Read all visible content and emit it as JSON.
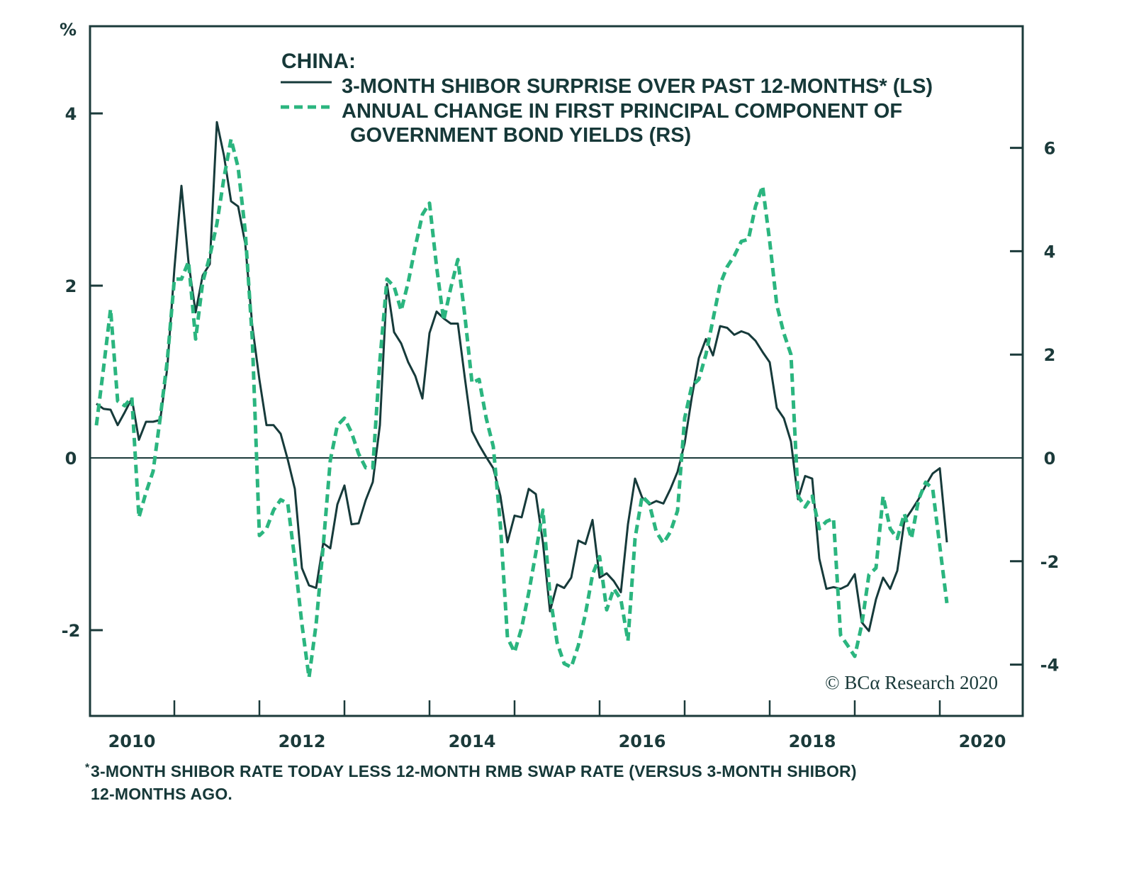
{
  "chart_data": {
    "type": "line",
    "title": "CHINA:",
    "left_axis_unit": "%",
    "x_tick_labels": [
      "2010",
      "2012",
      "2014",
      "2016",
      "2018",
      "2020"
    ],
    "x_range": [
      "2010-01",
      "2020-12"
    ],
    "y_left": {
      "label": "%",
      "ticks": [
        -2,
        0,
        2,
        4
      ],
      "range": [
        -2.9,
        5.0
      ]
    },
    "y_right": {
      "ticks": [
        -4,
        -2,
        0,
        2,
        4,
        6
      ],
      "range": [
        -4.9,
        7.9
      ]
    },
    "grid": false,
    "zero_line": true,
    "legend_position": "top-center",
    "series": [
      {
        "name": "3-MONTH SHIBOR SURPRISE OVER PAST 12-MONTHS* (LS)",
        "axis": "left",
        "style": "solid",
        "color": "#163a3a",
        "start": "2010-01",
        "frequency": "monthly",
        "values": [
          0.63,
          0.57,
          0.56,
          0.38,
          0.53,
          0.69,
          0.21,
          0.42,
          0.42,
          0.44,
          1.04,
          2.19,
          3.16,
          2.27,
          1.69,
          2.12,
          2.25,
          3.9,
          3.51,
          2.98,
          2.92,
          2.49,
          1.53,
          0.91,
          0.38,
          0.38,
          0.28,
          -0.02,
          -0.36,
          -1.28,
          -1.48,
          -1.51,
          -0.99,
          -1.05,
          -0.54,
          -0.32,
          -0.77,
          -0.76,
          -0.49,
          -0.28,
          0.38,
          2.02,
          1.46,
          1.33,
          1.11,
          0.95,
          0.69,
          1.45,
          1.7,
          1.62,
          1.56,
          1.56,
          0.92,
          0.31,
          0.15,
          0.01,
          -0.12,
          -0.44,
          -0.98,
          -0.67,
          -0.69,
          -0.36,
          -0.42,
          -0.98,
          -1.78,
          -1.47,
          -1.51,
          -1.39,
          -0.96,
          -1.0,
          -0.72,
          -1.39,
          -1.34,
          -1.43,
          -1.56,
          -0.77,
          -0.24,
          -0.46,
          -0.54,
          -0.5,
          -0.53,
          -0.36,
          -0.16,
          0.17,
          0.7,
          1.16,
          1.38,
          1.19,
          1.53,
          1.51,
          1.43,
          1.47,
          1.44,
          1.36,
          1.23,
          1.11,
          0.58,
          0.46,
          0.19,
          -0.48,
          -0.21,
          -0.24,
          -1.17,
          -1.52,
          -1.5,
          -1.52,
          -1.48,
          -1.35,
          -1.91,
          -2.01,
          -1.64,
          -1.39,
          -1.52,
          -1.31,
          -0.73,
          -0.61,
          -0.48,
          -0.32,
          -0.18,
          -0.12,
          -0.98
        ]
      },
      {
        "name": "ANNUAL CHANGE IN FIRST PRINCIPAL COMPONENT OF GOVERNMENT BOND YIELDS (RS)",
        "axis": "right",
        "style": "dashed",
        "color": "#2bb57f",
        "start": "2010-01",
        "frequency": "monthly",
        "values": [
          0.63,
          1.73,
          2.88,
          1.1,
          1.01,
          1.17,
          -1.15,
          -0.67,
          -0.26,
          0.77,
          1.88,
          3.46,
          3.46,
          3.8,
          2.3,
          3.4,
          3.9,
          4.53,
          5.42,
          6.17,
          5.62,
          4.39,
          2.3,
          -1.5,
          -1.37,
          -1.01,
          -0.81,
          -0.88,
          -1.98,
          -3.22,
          -4.25,
          -3.22,
          -1.71,
          -0.05,
          0.63,
          0.77,
          0.49,
          0.08,
          -0.19,
          -0.19,
          1.88,
          3.46,
          3.32,
          2.85,
          3.4,
          4.09,
          4.71,
          4.93,
          3.7,
          2.66,
          3.29,
          3.84,
          2.74,
          1.45,
          1.52,
          0.77,
          0.22,
          -1.29,
          -3.48,
          -3.76,
          -3.29,
          -2.61,
          -1.84,
          -1.01,
          -2.66,
          -3.57,
          -3.98,
          -4.05,
          -3.63,
          -3.02,
          -2.26,
          -1.91,
          -2.94,
          -2.53,
          -2.74,
          -3.54,
          -1.56,
          -0.74,
          -0.88,
          -1.43,
          -1.65,
          -1.43,
          -1.02,
          0.77,
          1.39,
          1.52,
          2.0,
          2.68,
          3.36,
          3.7,
          3.91,
          4.19,
          4.23,
          4.87,
          5.26,
          4.19,
          2.96,
          2.41,
          2.0,
          -0.74,
          -0.95,
          -0.74,
          -1.37,
          -1.23,
          -1.17,
          -3.43,
          -3.63,
          -3.84,
          -3.22,
          -2.26,
          -2.13,
          -0.74,
          -1.37,
          -1.56,
          -1.08,
          -1.56,
          -0.81,
          -0.47,
          -0.6,
          -1.71,
          -2.81
        ]
      }
    ],
    "legend": {
      "title": "CHINA:",
      "line1": "3-MONTH SHIBOR SURPRISE OVER PAST 12-MONTHS* (LS)",
      "line2a": "ANNUAL CHANGE IN FIRST PRINCIPAL COMPONENT OF",
      "line2b": "GOVERNMENT BOND YIELDS (RS)"
    },
    "annotation": "© BCα Research 2020"
  },
  "footnote": {
    "marker": "*",
    "line1": "3-MONTH SHIBOR RATE TODAY LESS 12-MONTH RMB SWAP RATE (VERSUS 3-MONTH SHIBOR)",
    "line2": "12-MONTHS AGO."
  }
}
